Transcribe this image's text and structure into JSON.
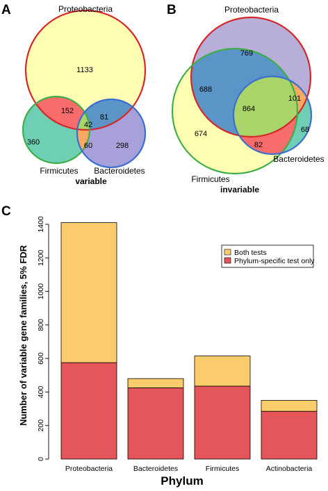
{
  "panels": {
    "a_letter": "A",
    "b_letter": "B",
    "c_letter": "C"
  },
  "venn_a": {
    "set_labels": {
      "proteobacteria": "Proteobacteria",
      "firmicutes": "Firmicutes",
      "bacteroidetes": "Bacteroidetes"
    },
    "caption": "variable",
    "counts": {
      "p_only": "1133",
      "p_f": "152",
      "p_b": "81",
      "p_f_b": "42",
      "f_only": "360",
      "f_b": "60",
      "b_only": "298"
    }
  },
  "venn_b": {
    "set_labels": {
      "proteobacteria": "Proteobacteria",
      "firmicutes": "Firmicutes",
      "bacteroidetes": "Bacteroidetes"
    },
    "caption": "invariable",
    "counts": {
      "p_only": "769",
      "p_f": "688",
      "p_f_b": "864",
      "p_b": "101",
      "f_only": "674",
      "f_b": "82",
      "b_only": "68"
    }
  },
  "colors": {
    "both_tests": "#fbcc6c",
    "phylum_specific": "#e45659",
    "proteo_ring": "#d62728",
    "firmicutes_ring": "#3fae49",
    "bacteroidetes_ring": "#3a6fd0"
  },
  "chart_data": {
    "type": "bar",
    "stacked": true,
    "categories": [
      "Proteobacteria",
      "Bacteroidetes",
      "Firmicutes",
      "Actinobacteria"
    ],
    "series": [
      {
        "name": "Phylum-specific test only",
        "values": [
          575,
          425,
          435,
          285
        ]
      },
      {
        "name": "Both tests",
        "values": [
          835,
          55,
          180,
          65
        ]
      }
    ],
    "ylim": [
      0,
      1400
    ],
    "yticks": [
      "0",
      "200",
      "400",
      "600",
      "800",
      "1000",
      "1200",
      "1400"
    ],
    "xlabel": "Phylum",
    "ylabel": "Number of variable gene families, 5% FDR",
    "legend": {
      "position": "top-right",
      "entries": [
        "Both tests",
        "Phylum-specific test only"
      ]
    }
  }
}
